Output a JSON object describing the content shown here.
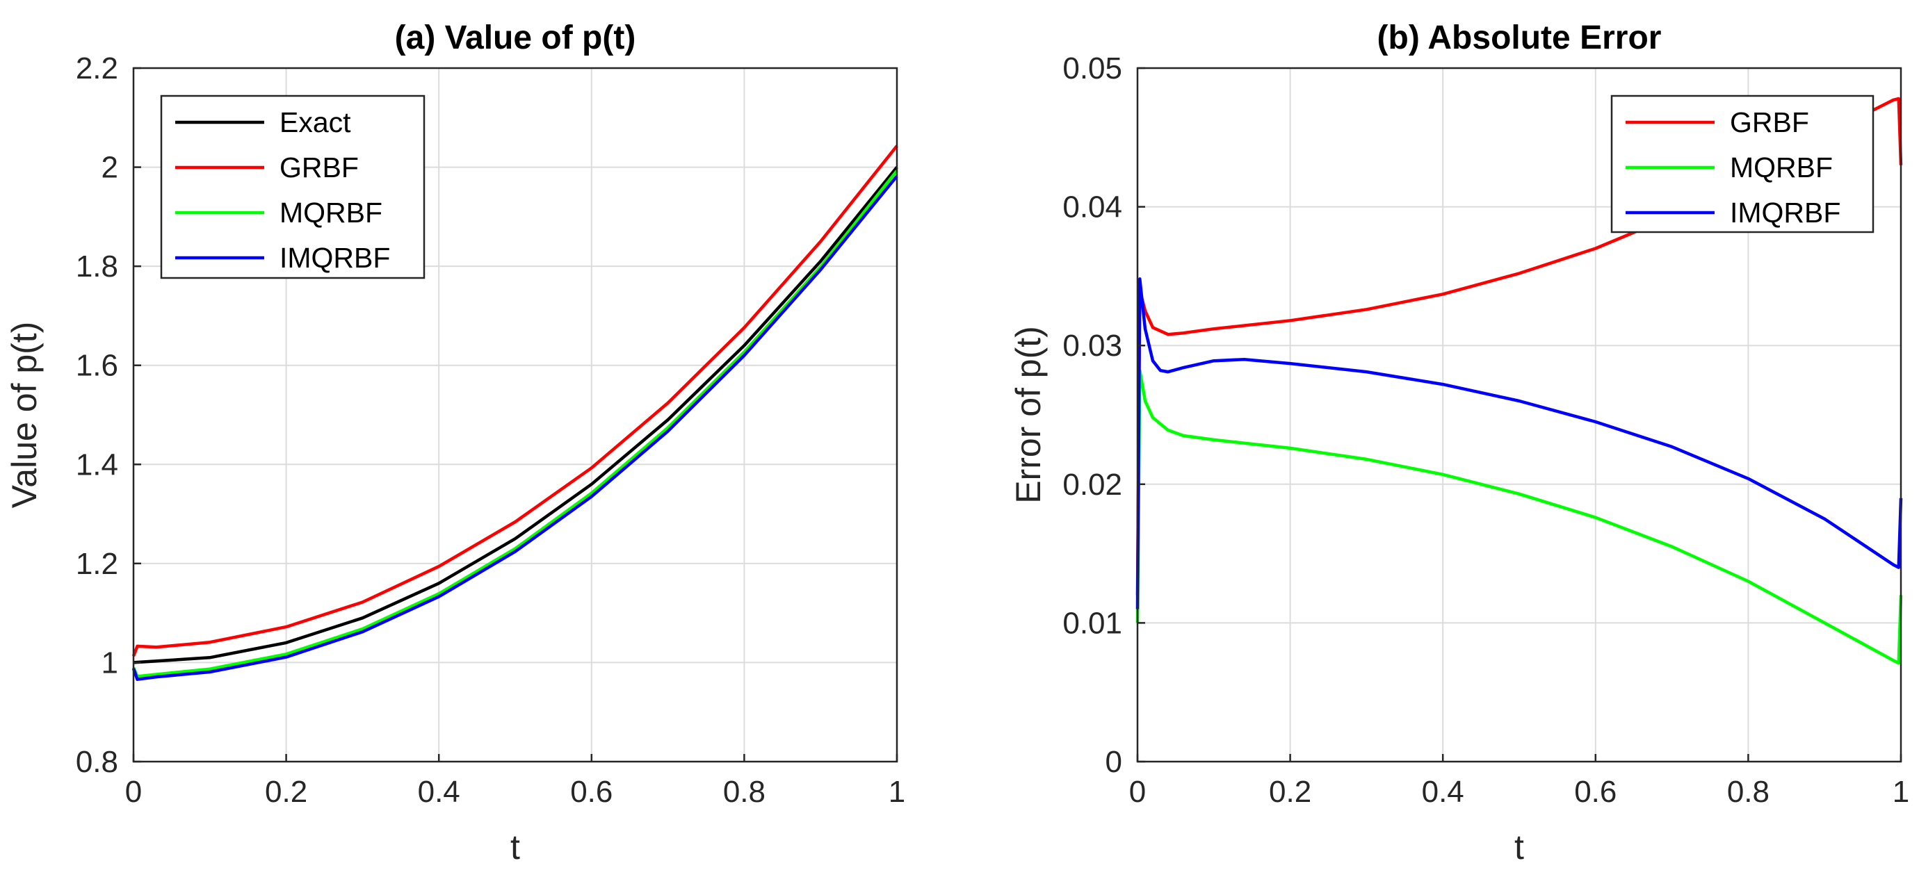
{
  "chart_data": [
    {
      "type": "line",
      "title": "(a) Value of p(t)",
      "xlabel": "t",
      "ylabel": "Value of p(t)",
      "xlim": [
        0,
        1
      ],
      "ylim": [
        0.8,
        2.2
      ],
      "xticks": [
        "0",
        "0.2",
        "0.4",
        "0.6",
        "0.8",
        "1"
      ],
      "yticks": [
        "0.8",
        "1",
        "1.2",
        "1.4",
        "1.6",
        "1.8",
        "2",
        "2.2"
      ],
      "legend_position": "top-left",
      "series": [
        {
          "name": "Exact",
          "color": "#000000",
          "x": [
            0,
            0.1,
            0.2,
            0.3,
            0.4,
            0.5,
            0.6,
            0.7,
            0.8,
            0.9,
            1.0
          ],
          "y": [
            1.0,
            1.01,
            1.04,
            1.09,
            1.16,
            1.25,
            1.36,
            1.49,
            1.64,
            1.81,
            2.0
          ]
        },
        {
          "name": "GRBF",
          "color": "#ff0000",
          "x": [
            0,
            0.005,
            0.03,
            0.1,
            0.2,
            0.3,
            0.4,
            0.5,
            0.6,
            0.7,
            0.8,
            0.9,
            1.0
          ],
          "y": [
            1.013,
            1.033,
            1.031,
            1.041,
            1.072,
            1.122,
            1.194,
            1.284,
            1.393,
            1.524,
            1.676,
            1.85,
            2.043
          ]
        },
        {
          "name": "MQRBF",
          "color": "#00ff00",
          "x": [
            0,
            0.005,
            0.03,
            0.1,
            0.2,
            0.3,
            0.4,
            0.5,
            0.6,
            0.7,
            0.8,
            0.9,
            1.0
          ],
          "y": [
            0.99,
            0.972,
            0.976,
            0.987,
            1.017,
            1.068,
            1.139,
            1.23,
            1.342,
            1.474,
            1.627,
            1.799,
            1.993
          ]
        },
        {
          "name": "IMQRBF",
          "color": "#0000ff",
          "x": [
            0,
            0.005,
            0.03,
            0.1,
            0.2,
            0.3,
            0.4,
            0.5,
            0.6,
            0.7,
            0.8,
            0.9,
            1.0
          ],
          "y": [
            0.988,
            0.966,
            0.971,
            0.981,
            1.011,
            1.062,
            1.133,
            1.224,
            1.335,
            1.467,
            1.62,
            1.793,
            1.982
          ]
        }
      ]
    },
    {
      "type": "line",
      "title": "(b) Absolute Error",
      "xlabel": "t",
      "ylabel": "Error of p(t)",
      "xlim": [
        0,
        1
      ],
      "ylim": [
        0,
        0.05
      ],
      "xticks": [
        "0",
        "0.2",
        "0.4",
        "0.6",
        "0.8",
        "1"
      ],
      "yticks": [
        "0",
        "0.01",
        "0.02",
        "0.03",
        "0.04",
        "0.05"
      ],
      "legend_position": "top-right",
      "series": [
        {
          "name": "GRBF",
          "color": "#ff0000",
          "x": [
            0,
            0.003,
            0.01,
            0.02,
            0.04,
            0.06,
            0.1,
            0.2,
            0.3,
            0.4,
            0.5,
            0.6,
            0.7,
            0.8,
            0.9,
            0.99,
            0.997,
            1.0
          ],
          "y": [
            0.012,
            0.034,
            0.0325,
            0.0313,
            0.0308,
            0.0309,
            0.0312,
            0.0318,
            0.0326,
            0.0337,
            0.0352,
            0.037,
            0.0393,
            0.042,
            0.0452,
            0.0477,
            0.0478,
            0.043
          ]
        },
        {
          "name": "MQRBF",
          "color": "#00ff00",
          "x": [
            0,
            0.003,
            0.01,
            0.02,
            0.04,
            0.06,
            0.1,
            0.2,
            0.3,
            0.4,
            0.5,
            0.6,
            0.7,
            0.8,
            0.9,
            0.99,
            0.997,
            1.0
          ],
          "y": [
            0.01,
            0.0282,
            0.026,
            0.0248,
            0.0239,
            0.0235,
            0.0232,
            0.0226,
            0.0218,
            0.0207,
            0.0193,
            0.0176,
            0.0155,
            0.013,
            0.01,
            0.0073,
            0.0071,
            0.012
          ]
        },
        {
          "name": "IMQRBF",
          "color": "#0000ff",
          "x": [
            0,
            0.003,
            0.01,
            0.02,
            0.03,
            0.04,
            0.06,
            0.1,
            0.14,
            0.2,
            0.3,
            0.4,
            0.5,
            0.6,
            0.7,
            0.8,
            0.9,
            0.99,
            0.997,
            1.0
          ],
          "y": [
            0.011,
            0.0348,
            0.0312,
            0.0289,
            0.0282,
            0.0281,
            0.0284,
            0.0289,
            0.029,
            0.0287,
            0.0281,
            0.0272,
            0.026,
            0.0245,
            0.0227,
            0.0204,
            0.0175,
            0.0142,
            0.014,
            0.019
          ]
        }
      ]
    }
  ]
}
